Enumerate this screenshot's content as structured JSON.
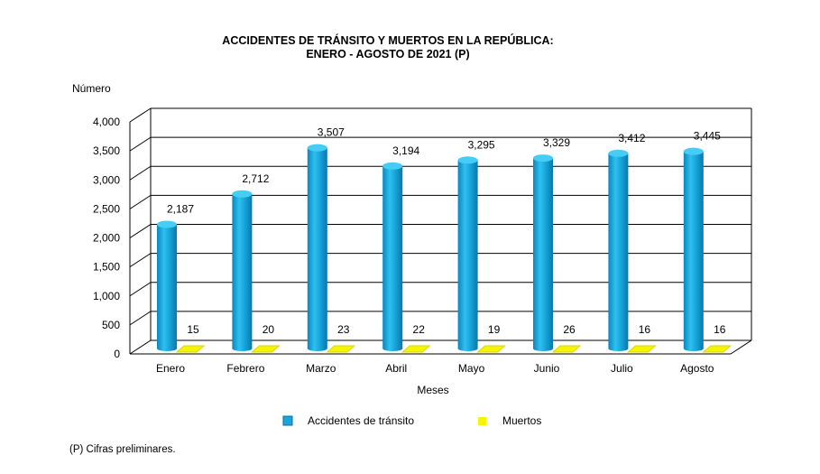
{
  "chart_data": {
    "type": "bar",
    "title_line1": "ACCIDENTES  DE  TRÁNSITO Y MUERTOS  EN  LA REPÚBLICA:",
    "title_line2": "ENERO  - AGOSTO  DE  2021 (P)",
    "ylabel": "Número",
    "xlabel": "Meses",
    "ylim": [
      0,
      4000
    ],
    "yticks": [
      0,
      500,
      1000,
      1500,
      2000,
      2500,
      3000,
      3500,
      4000
    ],
    "ytick_labels": [
      "0",
      "500",
      "1,000",
      "1,500",
      "2,000",
      "2,500",
      "3,000",
      "3,500",
      "4,000"
    ],
    "grid": true,
    "categories": [
      "Enero",
      "Febrero",
      "Marzo",
      "Abril",
      "Mayo",
      "Junio",
      "Julio",
      "Agosto"
    ],
    "series": [
      {
        "name": "Accidentes de tránsito",
        "color": "#1aa6dc",
        "values": [
          2187,
          2712,
          3507,
          3194,
          3295,
          3329,
          3412,
          3445
        ],
        "labels": [
          "2,187",
          "2,712",
          "3,507",
          "3,194",
          "3,295",
          "3,329",
          "3,412",
          "3,445"
        ]
      },
      {
        "name": "Muertos",
        "color": "#f5f500",
        "values": [
          15,
          20,
          23,
          22,
          19,
          26,
          16,
          16
        ],
        "labels": [
          "15",
          "20",
          "23",
          "22",
          "19",
          "26",
          "16",
          "16"
        ]
      }
    ],
    "legend_position": "bottom"
  },
  "footnote": "(P) Cifras preliminares."
}
